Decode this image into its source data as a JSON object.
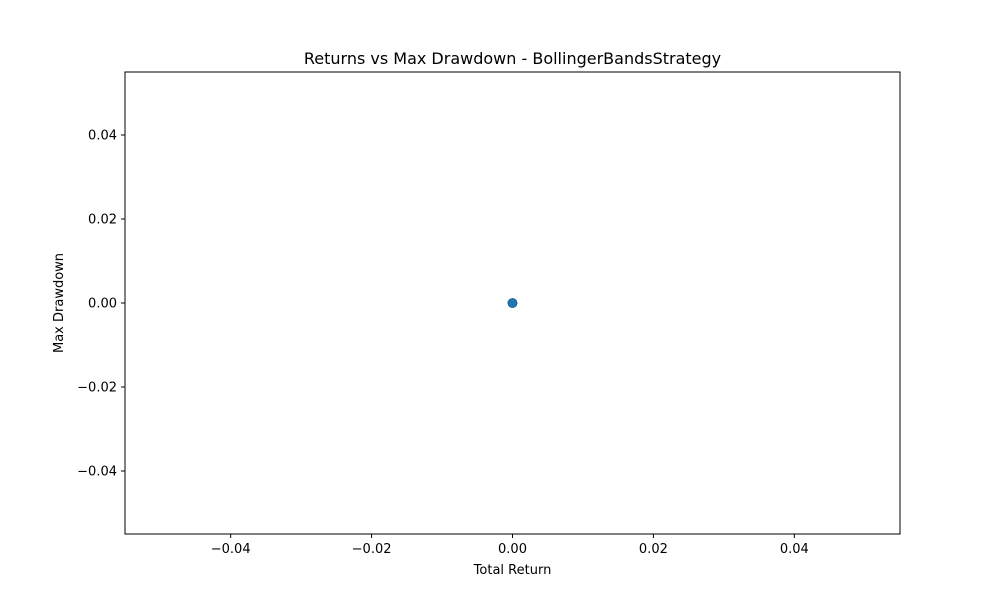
{
  "chart_data": {
    "type": "scatter",
    "title": "Returns vs Max Drawdown - BollingerBandsStrategy",
    "xlabel": "Total Return",
    "ylabel": "Max Drawdown",
    "xlim": [
      -0.055,
      0.055
    ],
    "ylim": [
      -0.055,
      0.055
    ],
    "xticks": [
      -0.04,
      -0.02,
      0.0,
      0.02,
      0.04
    ],
    "xtick_labels": [
      "−0.04",
      "−0.02",
      "0.00",
      "0.02",
      "0.04"
    ],
    "yticks": [
      -0.04,
      -0.02,
      0.0,
      0.02,
      0.04
    ],
    "ytick_labels": [
      "−0.04",
      "−0.02",
      "0.00",
      "0.02",
      "0.04"
    ],
    "grid": false,
    "marker_color": "#1f77b4",
    "points": [
      {
        "x": 0.0,
        "y": 0.0
      },
      {
        "x": 0.0,
        "y": 0.0
      },
      {
        "x": 0.0,
        "y": 0.0
      }
    ]
  }
}
